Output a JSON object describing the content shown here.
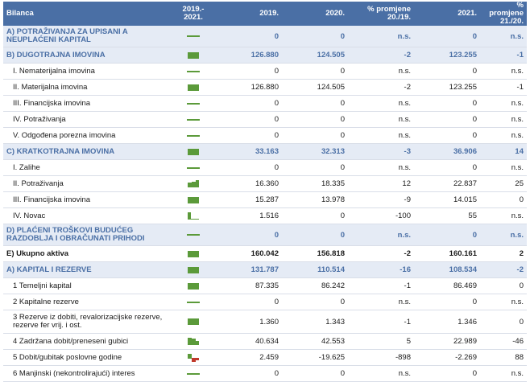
{
  "header": {
    "label": "Bilanca",
    "change_col": "2019.-\n2021.",
    "y2019": "2019.",
    "y2020": "2020.",
    "pct_20_19": "% promjene\n20./19.",
    "y2021": "2021.",
    "pct_21_20": "% promjene\n21./20."
  },
  "colors": {
    "header_bg": "#4a6fa5",
    "section_bg": "#e5ebf5",
    "section_text": "#4a6fa5",
    "spark_green": "#5b9a3a",
    "spark_red": "#c0392b"
  },
  "rows": [
    {
      "label": "A) POTRAŽIVANJA ZA UPISANI A NEUPLAĆENI KAPITAL",
      "type": "section",
      "height": "h2",
      "spark": "flat",
      "v2019": "0",
      "v2020": "0",
      "p2019": "n.s.",
      "v2021": "0",
      "p2021": "n.s."
    },
    {
      "label": "B) DUGOTRAJNA IMOVINA",
      "type": "section",
      "spark": "full",
      "v2019": "126.880",
      "v2020": "124.505",
      "p2019": "-2",
      "v2021": "123.255",
      "p2021": "-1"
    },
    {
      "label": "I. Nematerijalna imovina",
      "type": "item",
      "spark": "flat",
      "v2019": "0",
      "v2020": "0",
      "p2019": "n.s.",
      "v2021": "0",
      "p2021": "n.s."
    },
    {
      "label": "II. Materijalna imovina",
      "type": "item",
      "spark": "full",
      "v2019": "126.880",
      "v2020": "124.505",
      "p2019": "-2",
      "v2021": "123.255",
      "p2021": "-1"
    },
    {
      "label": "III. Financijska imovina",
      "type": "item",
      "spark": "flat",
      "v2019": "0",
      "v2020": "0",
      "p2019": "n.s.",
      "v2021": "0",
      "p2021": "n.s."
    },
    {
      "label": "IV. Potraživanja",
      "type": "item",
      "spark": "flat",
      "v2019": "0",
      "v2020": "0",
      "p2019": "n.s.",
      "v2021": "0",
      "p2021": "n.s."
    },
    {
      "label": "V. Odgođena porezna imovina",
      "type": "item",
      "spark": "flat",
      "v2019": "0",
      "v2020": "0",
      "p2019": "n.s.",
      "v2021": "0",
      "p2021": "n.s."
    },
    {
      "label": "C) KRATKOTRAJNA IMOVINA",
      "type": "section",
      "spark": "full",
      "v2019": "33.163",
      "v2020": "32.313",
      "p2019": "-3",
      "v2021": "36.906",
      "p2021": "14"
    },
    {
      "label": "I. Zalihe",
      "type": "item",
      "spark": "flat",
      "v2019": "0",
      "v2020": "0",
      "p2019": "n.s.",
      "v2021": "0",
      "p2021": "n.s."
    },
    {
      "label": "II. Potraživanja",
      "type": "item",
      "spark": "grow",
      "v2019": "16.360",
      "v2020": "18.335",
      "p2019": "12",
      "v2021": "22.837",
      "p2021": "25"
    },
    {
      "label": "III. Financijska imovina",
      "type": "item",
      "spark": "full",
      "v2019": "15.287",
      "v2020": "13.978",
      "p2019": "-9",
      "v2021": "14.015",
      "p2021": "0"
    },
    {
      "label": "IV. Novac",
      "type": "item",
      "spark": "drop",
      "v2019": "1.516",
      "v2020": "0",
      "p2019": "-100",
      "v2021": "55",
      "p2021": "n.s."
    },
    {
      "label": "D) PLAĆENI TROŠKOVI BUDUĆEG RAZDOBLJA I OBRAČUNATI PRIHODI",
      "type": "section",
      "height": "h2",
      "spark": "flat",
      "v2019": "0",
      "v2020": "0",
      "p2019": "n.s.",
      "v2021": "0",
      "p2021": "n.s."
    },
    {
      "label": "E) Ukupno aktiva",
      "type": "total",
      "spark": "full",
      "v2019": "160.042",
      "v2020": "156.818",
      "p2019": "-2",
      "v2021": "160.161",
      "p2021": "2"
    },
    {
      "label": "A) KAPITAL I REZERVE",
      "type": "section",
      "spark": "full",
      "v2019": "131.787",
      "v2020": "110.514",
      "p2019": "-16",
      "v2021": "108.534",
      "p2021": "-2"
    },
    {
      "label": "1 Temeljni kapital",
      "type": "item",
      "spark": "full",
      "v2019": "87.335",
      "v2020": "86.242",
      "p2019": "-1",
      "v2021": "86.469",
      "p2021": "0"
    },
    {
      "label": "2 Kapitalne rezerve",
      "type": "item",
      "spark": "flat",
      "v2019": "0",
      "v2020": "0",
      "p2019": "n.s.",
      "v2021": "0",
      "p2021": "n.s."
    },
    {
      "label": "3 Rezerve iz dobiti, revalorizacijske rezerve, rezerve fer vrij. i ost.",
      "type": "item",
      "height": "h3",
      "spark": "full",
      "v2019": "1.360",
      "v2020": "1.343",
      "p2019": "-1",
      "v2021": "1.346",
      "p2021": "0"
    },
    {
      "label": "4 Zadržana dobit/preneseni gubici",
      "type": "item",
      "spark": "shrink",
      "v2019": "40.634",
      "v2020": "42.553",
      "p2019": "5",
      "v2021": "22.989",
      "p2021": "-46"
    },
    {
      "label": "5 Dobit/gubitak poslovne godine",
      "type": "item",
      "spark": "mixed",
      "v2019": "2.459",
      "v2020": "-19.625",
      "p2019": "-898",
      "v2021": "-2.269",
      "p2021": "88"
    },
    {
      "label": "6 Manjinski (nekontrolirajući) interes",
      "type": "item",
      "spark": "flat",
      "v2019": "0",
      "v2020": "0",
      "p2019": "n.s.",
      "v2021": "0",
      "p2021": "n.s."
    }
  ]
}
